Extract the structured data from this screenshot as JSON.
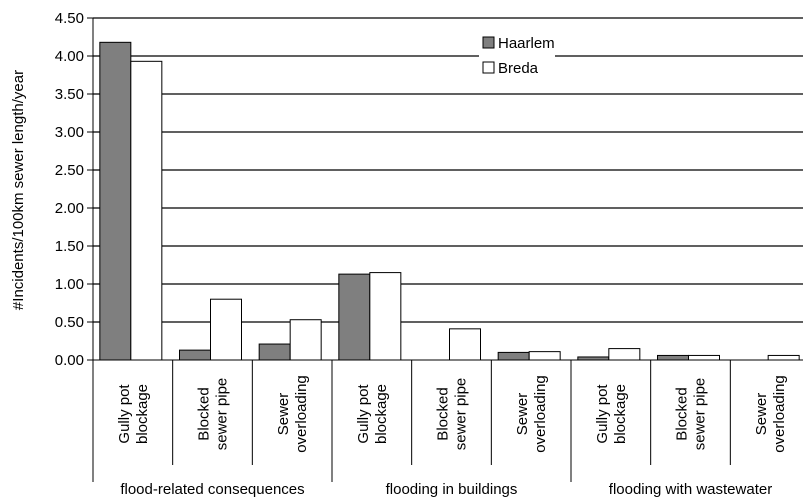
{
  "chart_data": {
    "type": "bar",
    "ylabel": "#Incidents/100km sewer length/year",
    "xlabel": "",
    "ylim": [
      0,
      4.5
    ],
    "yticks": [
      "0.00",
      "0.50",
      "1.00",
      "1.50",
      "2.00",
      "2.50",
      "3.00",
      "3.50",
      "4.00",
      "4.50"
    ],
    "grid": true,
    "legend_position": "top-right",
    "categories": [
      {
        "lines": [
          "Gully pot",
          "blockage"
        ]
      },
      {
        "lines": [
          "Blocked",
          "sewer pipe"
        ]
      },
      {
        "lines": [
          "Sewer",
          "overloading"
        ]
      },
      {
        "lines": [
          "Gully pot",
          "blockage"
        ]
      },
      {
        "lines": [
          "Blocked",
          "sewer pipe"
        ]
      },
      {
        "lines": [
          "Sewer",
          "overloading"
        ]
      },
      {
        "lines": [
          "Gully pot",
          "blockage"
        ]
      },
      {
        "lines": [
          "Blocked",
          "sewer pipe"
        ]
      },
      {
        "lines": [
          "Sewer",
          "overloading"
        ]
      }
    ],
    "groups": [
      {
        "label": "flood-related consequences",
        "span": [
          0,
          2
        ]
      },
      {
        "label": "flooding in buildings",
        "span": [
          3,
          5
        ]
      },
      {
        "label": "flooding with wastewater",
        "span": [
          6,
          8
        ]
      }
    ],
    "series": [
      {
        "name": "Haarlem",
        "color": "#7f7f7f",
        "values": [
          4.18,
          0.13,
          0.21,
          1.13,
          0.0,
          0.1,
          0.04,
          0.06,
          0.0
        ]
      },
      {
        "name": "Breda",
        "color": "#ffffff",
        "values": [
          3.93,
          0.8,
          0.53,
          1.15,
          0.41,
          0.11,
          0.15,
          0.06,
          0.06
        ]
      }
    ]
  }
}
